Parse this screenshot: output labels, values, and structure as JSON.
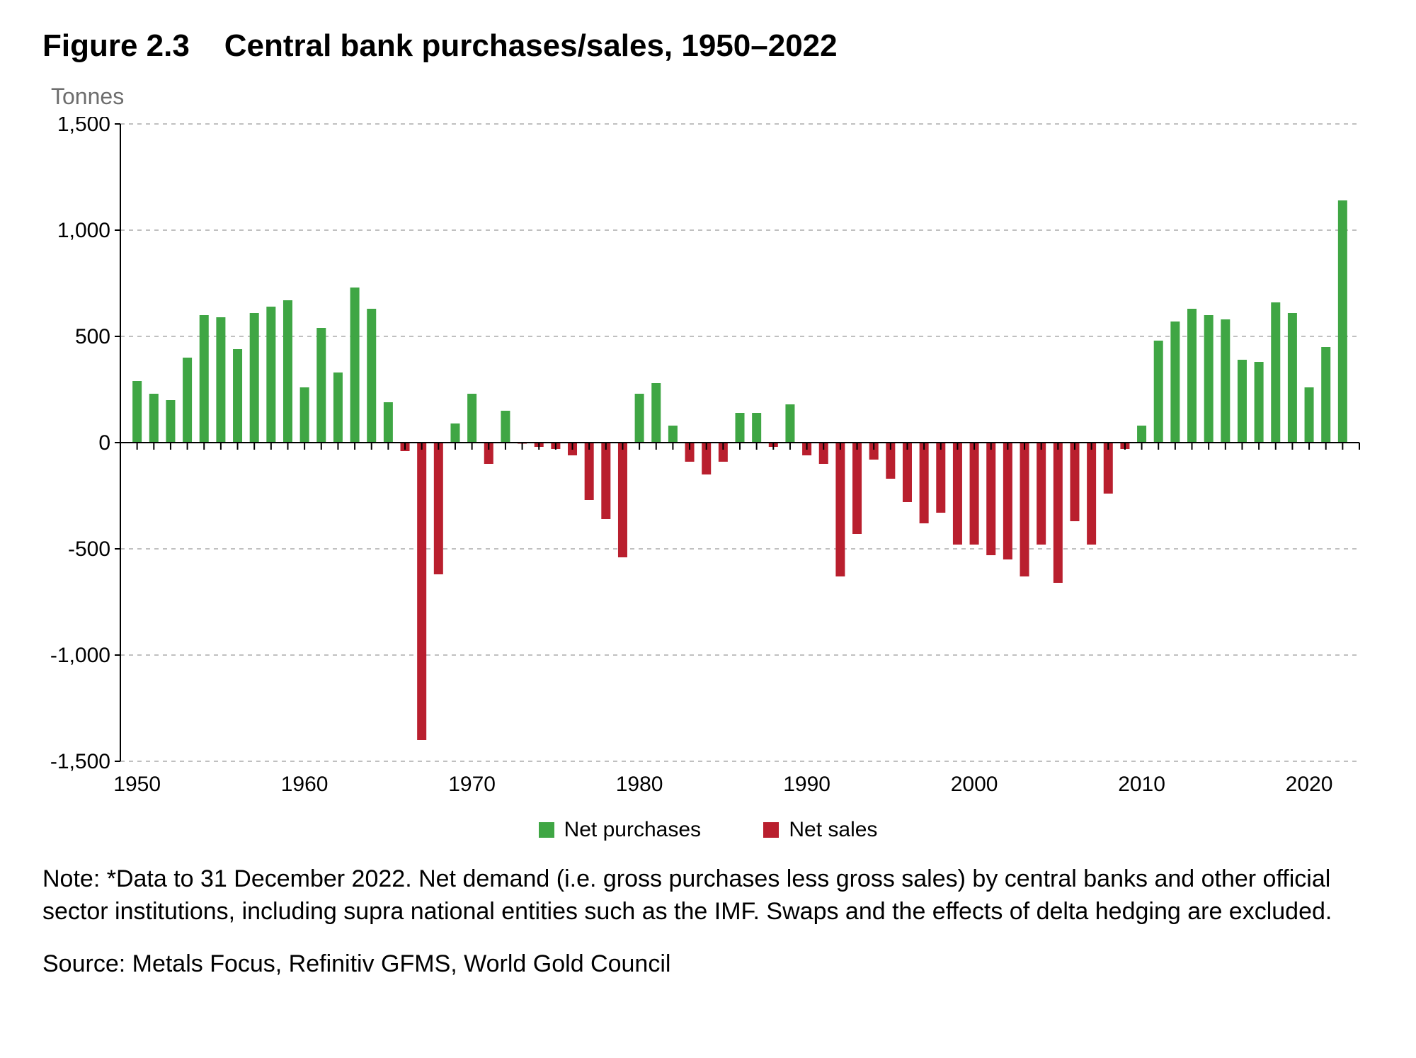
{
  "figure": {
    "label": "Figure 2.3",
    "title": "Central bank purchases/sales, 1950–2022",
    "full_title": "Figure 2.3    Central bank purchases/sales, 1950–2022",
    "y_unit_label": "Tonnes",
    "note": "Note: *Data to 31 December 2022. Net demand (i.e. gross purchases less gross sales) by central banks and other official sector institutions, including supra national entities such as the IMF. Swaps and the effects of delta hedging are excluded.",
    "source": "Source: Metals Focus, Refinitiv GFMS, World Gold Council",
    "title_fontsize_pt": 33,
    "body_fontsize_pt": 26
  },
  "chart": {
    "type": "bar",
    "background_color": "#ffffff",
    "grid_color": "#9a9a9a",
    "axis_color": "#000000",
    "bar_width_ratio": 0.55,
    "colors": {
      "positive": "#3fa644",
      "negative": "#b91f2e"
    },
    "x": {
      "min": 1949,
      "max": 2023,
      "tick_start": 1950,
      "tick_step_major": 10,
      "tick_step_minor": 1,
      "minor_tick_len": 10,
      "label_fontsize_pt": 22
    },
    "y": {
      "min": -1500,
      "max": 1500,
      "tick_step": 500,
      "label_fontsize_pt": 22,
      "tick_labels": [
        "-1,500",
        "-1,000",
        "-500",
        "0",
        "500",
        "1,000",
        "1,500"
      ]
    },
    "legend": {
      "items": [
        {
          "label": "Net purchases",
          "color": "#3fa644"
        },
        {
          "label": "Net sales",
          "color": "#b91f2e"
        }
      ],
      "fontsize_pt": 22
    },
    "data": [
      {
        "year": 1950,
        "value": 290
      },
      {
        "year": 1951,
        "value": 230
      },
      {
        "year": 1952,
        "value": 200
      },
      {
        "year": 1953,
        "value": 400
      },
      {
        "year": 1954,
        "value": 600
      },
      {
        "year": 1955,
        "value": 590
      },
      {
        "year": 1956,
        "value": 440
      },
      {
        "year": 1957,
        "value": 610
      },
      {
        "year": 1958,
        "value": 640
      },
      {
        "year": 1959,
        "value": 670
      },
      {
        "year": 1960,
        "value": 260
      },
      {
        "year": 1961,
        "value": 540
      },
      {
        "year": 1962,
        "value": 330
      },
      {
        "year": 1963,
        "value": 730
      },
      {
        "year": 1964,
        "value": 630
      },
      {
        "year": 1965,
        "value": 190
      },
      {
        "year": 1966,
        "value": -40
      },
      {
        "year": 1967,
        "value": -1400
      },
      {
        "year": 1968,
        "value": -620
      },
      {
        "year": 1969,
        "value": 90
      },
      {
        "year": 1970,
        "value": 230
      },
      {
        "year": 1971,
        "value": -100
      },
      {
        "year": 1972,
        "value": 150
      },
      {
        "year": 1973,
        "value": -5
      },
      {
        "year": 1974,
        "value": -20
      },
      {
        "year": 1975,
        "value": -30
      },
      {
        "year": 1976,
        "value": -60
      },
      {
        "year": 1977,
        "value": -270
      },
      {
        "year": 1978,
        "value": -360
      },
      {
        "year": 1979,
        "value": -540
      },
      {
        "year": 1980,
        "value": 230
      },
      {
        "year": 1981,
        "value": 280
      },
      {
        "year": 1982,
        "value": 80
      },
      {
        "year": 1983,
        "value": -90
      },
      {
        "year": 1984,
        "value": -150
      },
      {
        "year": 1985,
        "value": -90
      },
      {
        "year": 1986,
        "value": 140
      },
      {
        "year": 1987,
        "value": 140
      },
      {
        "year": 1988,
        "value": -20
      },
      {
        "year": 1989,
        "value": 180
      },
      {
        "year": 1990,
        "value": -60
      },
      {
        "year": 1991,
        "value": -100
      },
      {
        "year": 1992,
        "value": -630
      },
      {
        "year": 1993,
        "value": -430
      },
      {
        "year": 1994,
        "value": -80
      },
      {
        "year": 1995,
        "value": -170
      },
      {
        "year": 1996,
        "value": -280
      },
      {
        "year": 1997,
        "value": -380
      },
      {
        "year": 1998,
        "value": -330
      },
      {
        "year": 1999,
        "value": -480
      },
      {
        "year": 2000,
        "value": -480
      },
      {
        "year": 2001,
        "value": -530
      },
      {
        "year": 2002,
        "value": -550
      },
      {
        "year": 2003,
        "value": -630
      },
      {
        "year": 2004,
        "value": -480
      },
      {
        "year": 2005,
        "value": -660
      },
      {
        "year": 2006,
        "value": -370
      },
      {
        "year": 2007,
        "value": -480
      },
      {
        "year": 2008,
        "value": -240
      },
      {
        "year": 2009,
        "value": -30
      },
      {
        "year": 2010,
        "value": 80
      },
      {
        "year": 2011,
        "value": 480
      },
      {
        "year": 2012,
        "value": 570
      },
      {
        "year": 2013,
        "value": 630
      },
      {
        "year": 2014,
        "value": 600
      },
      {
        "year": 2015,
        "value": 580
      },
      {
        "year": 2016,
        "value": 390
      },
      {
        "year": 2017,
        "value": 380
      },
      {
        "year": 2018,
        "value": 660
      },
      {
        "year": 2019,
        "value": 610
      },
      {
        "year": 2020,
        "value": 260
      },
      {
        "year": 2021,
        "value": 450
      },
      {
        "year": 2022,
        "value": 1140
      }
    ]
  }
}
